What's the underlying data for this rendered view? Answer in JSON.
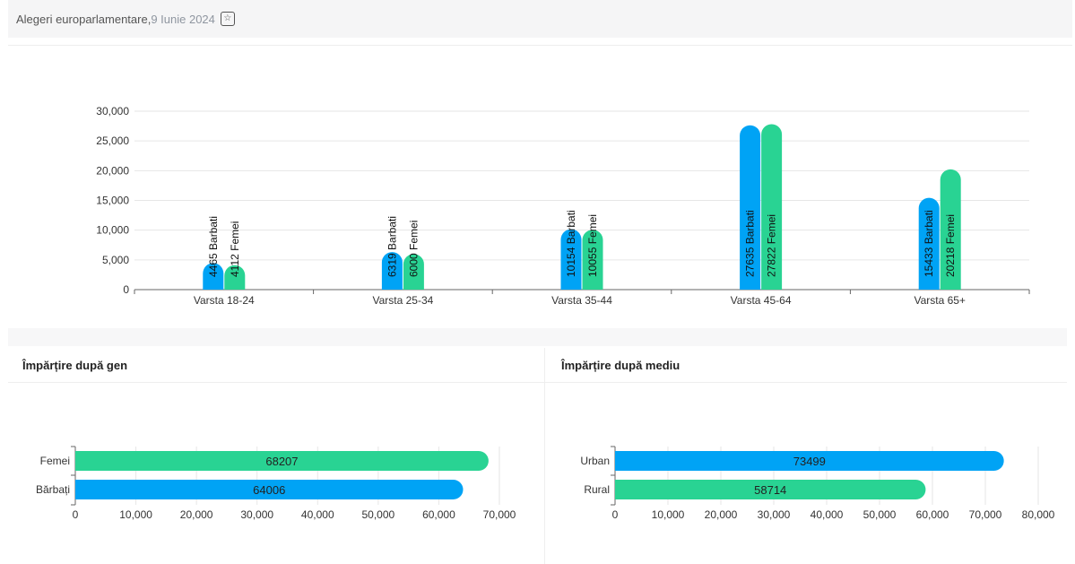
{
  "header": {
    "title": "Alegeri europarlamentare",
    "separator": ", ",
    "date": "9 Iunie 2024",
    "icon": "star-box-icon"
  },
  "panels": {
    "gender_title": "Împărțire după gen",
    "area_title": "Împărțire după mediu"
  },
  "colors": {
    "blue": "#00a3f5",
    "green": "#29d393"
  },
  "chart_data": [
    {
      "type": "bar",
      "categories": [
        "Varsta 18-24",
        "Varsta 25-34",
        "Varsta 35-44",
        "Varsta 45-64",
        "Varsta 65+"
      ],
      "series": [
        {
          "values": [
            4465,
            6319,
            10154,
            27635,
            15433
          ],
          "labels": [
            "4465 Barbati",
            "6319 Barbati",
            "10154 Barbati",
            "27635 Barbati",
            "15433 Barbati"
          ],
          "color": "#00a3f5"
        },
        {
          "values": [
            4112,
            6000,
            10055,
            27822,
            20218
          ],
          "labels": [
            "4112 Femei",
            "6000 Femei",
            "10055 Femei",
            "27822 Femei",
            "20218 Femei"
          ],
          "color": "#29d393"
        }
      ],
      "ylim": [
        0,
        30000
      ],
      "yticks": [
        "0",
        "5,000",
        "10,000",
        "15,000",
        "20,000",
        "25,000",
        "30,000"
      ],
      "grid": true
    },
    {
      "type": "bar",
      "orientation": "horizontal",
      "categories": [
        "Femei",
        "Bărbați"
      ],
      "values": [
        68207,
        64006
      ],
      "value_labels": [
        "68207",
        "64006"
      ],
      "colors": [
        "#29d393",
        "#00a3f5"
      ],
      "xlim": [
        0,
        70000
      ],
      "xticks": [
        "0",
        "10,000",
        "20,000",
        "30,000",
        "40,000",
        "50,000",
        "60,000",
        "70,000"
      ],
      "grid": true
    },
    {
      "type": "bar",
      "orientation": "horizontal",
      "categories": [
        "Urban",
        "Rural"
      ],
      "values": [
        73499,
        58714
      ],
      "value_labels": [
        "73499",
        "58714"
      ],
      "colors": [
        "#00a3f5",
        "#29d393"
      ],
      "xlim": [
        0,
        80000
      ],
      "xticks": [
        "0",
        "10,000",
        "20,000",
        "30,000",
        "40,000",
        "50,000",
        "60,000",
        "70,000",
        "80,000"
      ],
      "grid": true
    }
  ]
}
